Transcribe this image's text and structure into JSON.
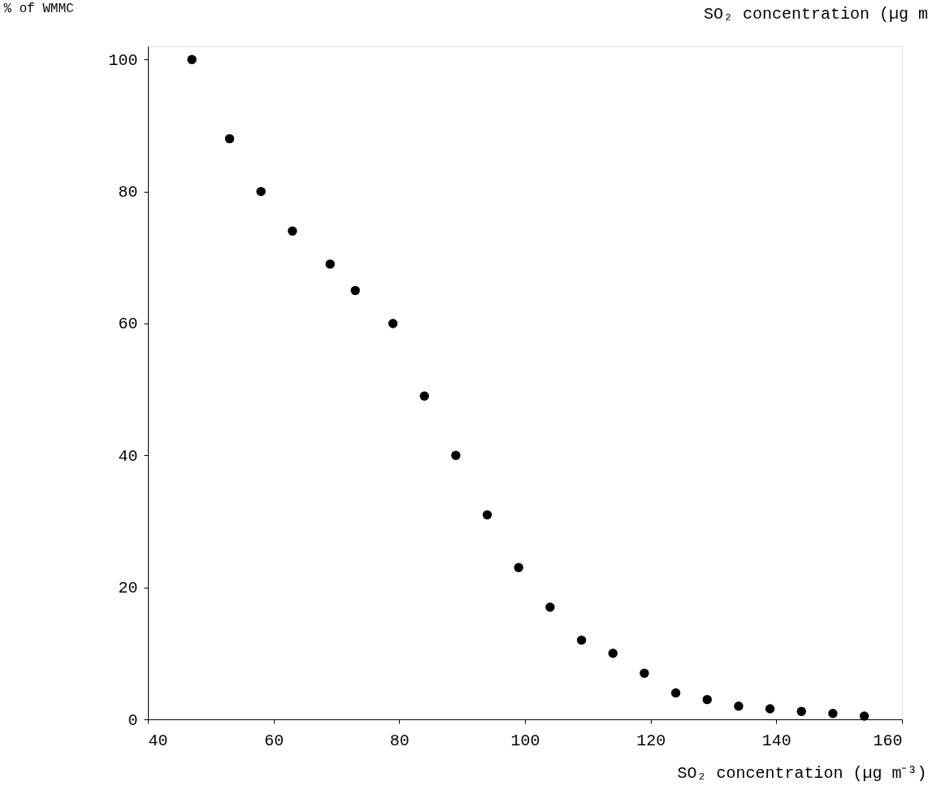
{
  "chart_data": {
    "type": "scatter",
    "xlabel": "SO₂ concentration (µg m⁻³)",
    "ylabel": "% of WMMC",
    "annotations": [
      "SO₂ concentration (µg m"
    ],
    "x": [
      47,
      53,
      58,
      63,
      69,
      73,
      79,
      84,
      89,
      94,
      99,
      104,
      109,
      114,
      119,
      124,
      129,
      134,
      139,
      144,
      149,
      154
    ],
    "series": [
      {
        "color": "#000000",
        "values": [
          100,
          88,
          80,
          74,
          69,
          65,
          60,
          49,
          40,
          31,
          23,
          17,
          12,
          10,
          7,
          4,
          3,
          2,
          1.6,
          1.2,
          0.9,
          0.5
        ]
      }
    ],
    "xlim": [
      40,
      160
    ],
    "xticks": [
      40,
      60,
      80,
      100,
      120,
      140,
      160
    ],
    "ylim": [
      0,
      102
    ],
    "yticks": [
      0,
      20,
      40,
      60,
      80,
      100
    ],
    "marker": "circle",
    "grid": false
  }
}
